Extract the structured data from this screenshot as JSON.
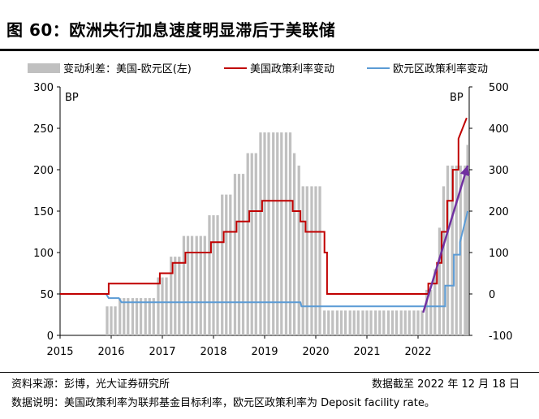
{
  "header": {
    "title": "图 60：欧洲央行加息速度明显滞后于美联储"
  },
  "footer": {
    "source": "资料来源：彭博，光大证券研究所",
    "date_note": "数据截至 2022 年 12 月 18 日",
    "explanation": "数据说明：美国政策利率为联邦基金目标利率，欧元区政策利率为 Deposit facility rate。"
  },
  "chart_data": {
    "type": "bar+line",
    "legend": [
      {
        "label": "变动利差：美国-欧元区(左)",
        "kind": "bar",
        "color": "#c0c0c0"
      },
      {
        "label": "美国政策利率变动",
        "kind": "line",
        "color": "#c00000"
      },
      {
        "label": "欧元区政策利率变动",
        "kind": "line",
        "color": "#5b9bd5"
      }
    ],
    "x_ticks": [
      "2015",
      "2016",
      "2017",
      "2018",
      "2019",
      "2020",
      "2021",
      "2022"
    ],
    "x_range": [
      2015.0,
      2023.0
    ],
    "y_left": {
      "label": "BP",
      "ticks": [
        0,
        50,
        100,
        150,
        200,
        250,
        300
      ],
      "range": [
        0,
        300
      ]
    },
    "y_right": {
      "label": "BP",
      "ticks": [
        -100,
        0,
        100,
        200,
        300,
        400,
        500
      ],
      "range": [
        -100,
        500
      ]
    },
    "spread_bars": [
      [
        2015.92,
        35
      ],
      [
        2016.0,
        35
      ],
      [
        2016.08,
        35
      ],
      [
        2016.17,
        45
      ],
      [
        2016.25,
        45
      ],
      [
        2016.33,
        45
      ],
      [
        2016.42,
        45
      ],
      [
        2016.5,
        45
      ],
      [
        2016.58,
        45
      ],
      [
        2016.67,
        45
      ],
      [
        2016.75,
        45
      ],
      [
        2016.83,
        45
      ],
      [
        2016.92,
        70
      ],
      [
        2017.0,
        70
      ],
      [
        2017.08,
        70
      ],
      [
        2017.17,
        95
      ],
      [
        2017.25,
        95
      ],
      [
        2017.33,
        95
      ],
      [
        2017.42,
        120
      ],
      [
        2017.5,
        120
      ],
      [
        2017.58,
        120
      ],
      [
        2017.67,
        120
      ],
      [
        2017.75,
        120
      ],
      [
        2017.83,
        120
      ],
      [
        2017.92,
        145
      ],
      [
        2018.0,
        145
      ],
      [
        2018.08,
        145
      ],
      [
        2018.17,
        170
      ],
      [
        2018.25,
        170
      ],
      [
        2018.33,
        170
      ],
      [
        2018.42,
        195
      ],
      [
        2018.5,
        195
      ],
      [
        2018.58,
        195
      ],
      [
        2018.67,
        220
      ],
      [
        2018.75,
        220
      ],
      [
        2018.83,
        220
      ],
      [
        2018.92,
        245
      ],
      [
        2019.0,
        245
      ],
      [
        2019.08,
        245
      ],
      [
        2019.17,
        245
      ],
      [
        2019.25,
        245
      ],
      [
        2019.33,
        245
      ],
      [
        2019.42,
        245
      ],
      [
        2019.5,
        245
      ],
      [
        2019.58,
        220
      ],
      [
        2019.67,
        205
      ],
      [
        2019.75,
        180
      ],
      [
        2019.83,
        180
      ],
      [
        2019.92,
        180
      ],
      [
        2020.0,
        180
      ],
      [
        2020.08,
        180
      ],
      [
        2020.17,
        30
      ],
      [
        2020.25,
        30
      ],
      [
        2020.33,
        30
      ],
      [
        2020.42,
        30
      ],
      [
        2020.5,
        30
      ],
      [
        2020.58,
        30
      ],
      [
        2020.67,
        30
      ],
      [
        2020.75,
        30
      ],
      [
        2020.83,
        30
      ],
      [
        2020.92,
        30
      ],
      [
        2021.0,
        30
      ],
      [
        2021.08,
        30
      ],
      [
        2021.17,
        30
      ],
      [
        2021.25,
        30
      ],
      [
        2021.33,
        30
      ],
      [
        2021.42,
        30
      ],
      [
        2021.5,
        30
      ],
      [
        2021.58,
        30
      ],
      [
        2021.67,
        30
      ],
      [
        2021.75,
        30
      ],
      [
        2021.83,
        30
      ],
      [
        2021.92,
        30
      ],
      [
        2022.0,
        30
      ],
      [
        2022.08,
        30
      ],
      [
        2022.17,
        55
      ],
      [
        2022.25,
        55
      ],
      [
        2022.33,
        80
      ],
      [
        2022.42,
        130
      ],
      [
        2022.5,
        180
      ],
      [
        2022.58,
        205
      ],
      [
        2022.67,
        205
      ],
      [
        2022.75,
        205
      ],
      [
        2022.83,
        205
      ],
      [
        2022.92,
        205
      ],
      [
        2022.97,
        230
      ]
    ],
    "us_rate_change": [
      [
        2015.0,
        0
      ],
      [
        2015.95,
        0
      ],
      [
        2015.95,
        25
      ],
      [
        2016.95,
        25
      ],
      [
        2016.95,
        50
      ],
      [
        2017.2,
        50
      ],
      [
        2017.2,
        75
      ],
      [
        2017.45,
        75
      ],
      [
        2017.45,
        100
      ],
      [
        2017.95,
        100
      ],
      [
        2017.95,
        125
      ],
      [
        2018.2,
        125
      ],
      [
        2018.2,
        150
      ],
      [
        2018.45,
        150
      ],
      [
        2018.45,
        175
      ],
      [
        2018.7,
        175
      ],
      [
        2018.7,
        200
      ],
      [
        2018.95,
        200
      ],
      [
        2018.95,
        225
      ],
      [
        2019.55,
        225
      ],
      [
        2019.55,
        200
      ],
      [
        2019.7,
        200
      ],
      [
        2019.7,
        175
      ],
      [
        2019.8,
        175
      ],
      [
        2019.8,
        150
      ],
      [
        2020.17,
        150
      ],
      [
        2020.17,
        100
      ],
      [
        2020.22,
        100
      ],
      [
        2020.22,
        0
      ],
      [
        2022.2,
        0
      ],
      [
        2022.2,
        25
      ],
      [
        2022.37,
        25
      ],
      [
        2022.37,
        75
      ],
      [
        2022.46,
        75
      ],
      [
        2022.46,
        150
      ],
      [
        2022.57,
        150
      ],
      [
        2022.57,
        225
      ],
      [
        2022.68,
        225
      ],
      [
        2022.68,
        300
      ],
      [
        2022.79,
        300
      ],
      [
        2022.79,
        375
      ],
      [
        2022.95,
        425
      ]
    ],
    "eu_rate_change": [
      [
        2015.0,
        0
      ],
      [
        2015.9,
        0
      ],
      [
        2015.95,
        -10
      ],
      [
        2016.15,
        -10
      ],
      [
        2016.2,
        -20
      ],
      [
        2019.7,
        -20
      ],
      [
        2019.72,
        -30
      ],
      [
        2022.53,
        -30
      ],
      [
        2022.53,
        20
      ],
      [
        2022.7,
        20
      ],
      [
        2022.7,
        95
      ],
      [
        2022.82,
        95
      ],
      [
        2022.82,
        125
      ],
      [
        2022.95,
        190
      ],
      [
        2022.97,
        200
      ]
    ],
    "arrow": {
      "from": [
        2022.1,
        -45
      ],
      "to": [
        2022.97,
        310
      ],
      "color": "#7030a0",
      "axis": "right"
    }
  }
}
